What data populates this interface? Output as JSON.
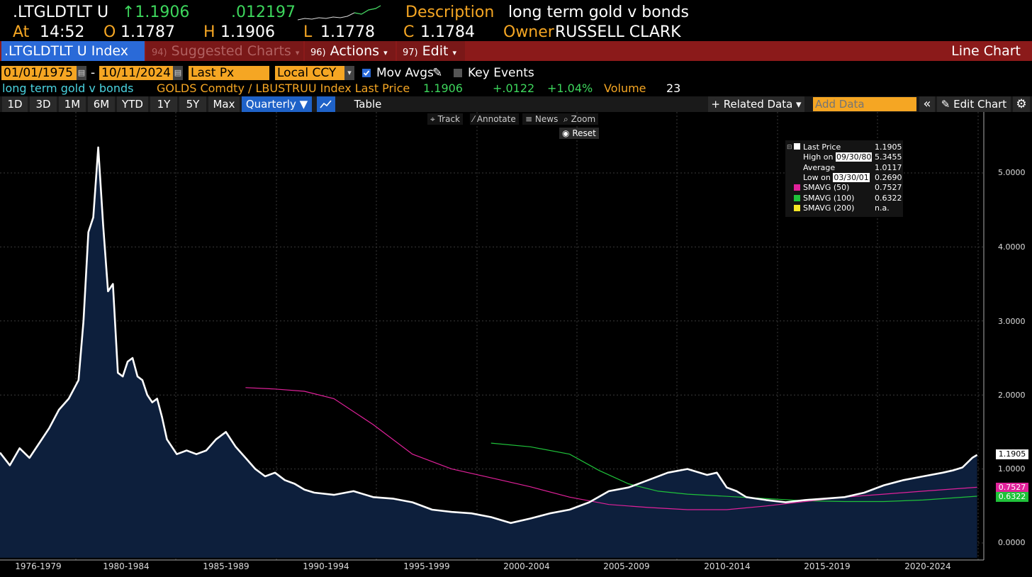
{
  "header": {
    "ticker": ".LTGLDTLT U",
    "last_price": "↑1.1906",
    "change": ".012197",
    "description_label": "Description",
    "description": "long term gold v bonds",
    "at_label": "At",
    "time": "14:52",
    "open_label": "O",
    "open": "1.1787",
    "high_label": "H",
    "high": "1.1906",
    "low_label": "L",
    "low": "1.1778",
    "close_label": "C",
    "close": "1.1784",
    "owner_label": "Owner",
    "owner": "RUSSELL CLARK"
  },
  "command_bar": {
    "security": ".LTGLDTLT U Index",
    "suggested_num": "94)",
    "suggested": "Suggested Charts",
    "actions_num": "96)",
    "actions": "Actions",
    "edit_num": "97)",
    "edit": "Edit",
    "chart_type": "Line Chart"
  },
  "params": {
    "start_date": "01/01/1975",
    "dash": "-",
    "end_date": "10/11/2024",
    "price_field": "Last Px",
    "currency": "Local CCY",
    "mov_avgs": "Mov Avgs",
    "key_events": "Key Events"
  },
  "info_line": {
    "name": "long term gold v bonds",
    "formula": "GOLDS Comdty / LBUSTRUU Index Last Price",
    "price": "1.1906",
    "change": "+.0122",
    "pct": "+1.04%",
    "volume_label": "Volume",
    "volume": "23"
  },
  "toolbar": {
    "ranges": [
      "1D",
      "3D",
      "1M",
      "6M",
      "YTD",
      "1Y",
      "5Y",
      "Max"
    ],
    "period": "Quarterly ▼",
    "table": "Table",
    "related": "+ Related Data ▾",
    "add_data_placeholder": "Add Data",
    "collapse": "«",
    "edit_chart": "Edit Chart"
  },
  "chart_tools": {
    "track": "Track",
    "annotate": "Annotate",
    "news": "News",
    "zoom": "Zoom",
    "reset": "Reset"
  },
  "legend": {
    "last_price_label": "Last Price",
    "last_price": "1.1905",
    "high_label": "High on",
    "high_date": "09/30/80",
    "high": "5.3455",
    "average_label": "Average",
    "average": "1.0117",
    "low_label": "Low on",
    "low_date": "03/30/01",
    "low": "0.2690",
    "sma50_label": "SMAVG (50)",
    "sma50": "0.7527",
    "sma100_label": "SMAVG (100)",
    "sma100": "0.6322",
    "sma200_label": "SMAVG (200)",
    "sma200": "n.a."
  },
  "colors": {
    "accent_orange": "#f5a623",
    "up_green": "#3dd65c",
    "bar_red": "#8b1a1a",
    "area_fill": "#0d1f3c",
    "sma50": "#e0219a",
    "sma100": "#1fc23a",
    "sma200": "#f5e625"
  },
  "chart_data": {
    "type": "area",
    "y_ticks": [
      "5.0000",
      "4.0000",
      "3.0000",
      "2.0000",
      "1.0000",
      "0.0000"
    ],
    "ylim": [
      -0.2,
      5.8
    ],
    "x_ticks": [
      "1976-1979",
      "1980-1984",
      "1985-1989",
      "1990-1994",
      "1995-1999",
      "2000-2004",
      "2005-2009",
      "2010-2014",
      "2015-2019",
      "2020-2024"
    ],
    "value_tags": [
      "1.1905",
      "0.7527",
      "0.6322"
    ],
    "grid": true,
    "series": [
      {
        "name": "Last Price",
        "x": [
          1975.0,
          1975.5,
          1976.0,
          1976.5,
          1977.0,
          1977.5,
          1978.0,
          1978.5,
          1979.0,
          1979.25,
          1979.5,
          1979.75,
          1980.0,
          1980.25,
          1980.5,
          1980.75,
          1981.0,
          1981.25,
          1981.5,
          1981.75,
          1982.0,
          1982.25,
          1982.5,
          1982.75,
          1983.0,
          1983.25,
          1983.5,
          1983.75,
          1984.0,
          1984.5,
          1985.0,
          1985.5,
          1986.0,
          1986.5,
          1987.0,
          1987.5,
          1988.0,
          1988.5,
          1989.0,
          1989.5,
          1990.0,
          1990.5,
          1991.0,
          1992.0,
          1993.0,
          1994.0,
          1995.0,
          1996.0,
          1997.0,
          1998.0,
          1999.0,
          2000.0,
          2001.0,
          2002.0,
          2003.0,
          2004.0,
          2005.0,
          2006.0,
          2007.0,
          2008.0,
          2009.0,
          2010.0,
          2011.0,
          2011.5,
          2012.0,
          2012.5,
          2013.0,
          2013.5,
          2014.0,
          2015.0,
          2016.0,
          2017.0,
          2018.0,
          2019.0,
          2020.0,
          2021.0,
          2022.0,
          2023.0,
          2023.5,
          2024.0,
          2024.5,
          2024.75
        ],
        "values": [
          1.22,
          1.05,
          1.28,
          1.15,
          1.35,
          1.55,
          1.8,
          1.95,
          2.2,
          3.0,
          4.2,
          4.4,
          5.3455,
          4.3,
          3.4,
          3.5,
          2.3,
          2.25,
          2.45,
          2.5,
          2.25,
          2.2,
          2.0,
          1.9,
          1.95,
          1.7,
          1.4,
          1.3,
          1.2,
          1.25,
          1.2,
          1.25,
          1.4,
          1.5,
          1.3,
          1.15,
          1.0,
          0.9,
          0.95,
          0.85,
          0.8,
          0.72,
          0.68,
          0.65,
          0.7,
          0.62,
          0.6,
          0.55,
          0.45,
          0.42,
          0.4,
          0.35,
          0.27,
          0.33,
          0.4,
          0.45,
          0.55,
          0.7,
          0.75,
          0.85,
          0.95,
          1.0,
          0.92,
          0.95,
          0.75,
          0.7,
          0.62,
          0.6,
          0.58,
          0.55,
          0.58,
          0.6,
          0.62,
          0.68,
          0.78,
          0.85,
          0.9,
          0.95,
          0.98,
          1.02,
          1.15,
          1.19
        ]
      },
      {
        "name": "SMAVG (50)",
        "x": [
          1987.5,
          1989.0,
          1990.5,
          1992.0,
          1994.0,
          1996.0,
          1998.0,
          2000.0,
          2002.0,
          2004.0,
          2006.0,
          2008.0,
          2010.0,
          2012.0,
          2014.0,
          2016.0,
          2018.0,
          2020.0,
          2022.0,
          2024.75
        ],
        "values": [
          2.1,
          2.08,
          2.05,
          1.95,
          1.6,
          1.2,
          1.0,
          0.88,
          0.76,
          0.62,
          0.52,
          0.48,
          0.45,
          0.45,
          0.5,
          0.56,
          0.62,
          0.66,
          0.7,
          0.7527
        ]
      },
      {
        "name": "SMAVG (100)",
        "x": [
          2000.0,
          2002.0,
          2004.0,
          2005.5,
          2007.0,
          2008.5,
          2010.0,
          2012.0,
          2014.0,
          2016.0,
          2018.0,
          2020.0,
          2022.0,
          2024.75
        ],
        "values": [
          1.35,
          1.3,
          1.2,
          0.98,
          0.8,
          0.7,
          0.66,
          0.63,
          0.6,
          0.57,
          0.56,
          0.56,
          0.58,
          0.6322
        ]
      }
    ]
  }
}
